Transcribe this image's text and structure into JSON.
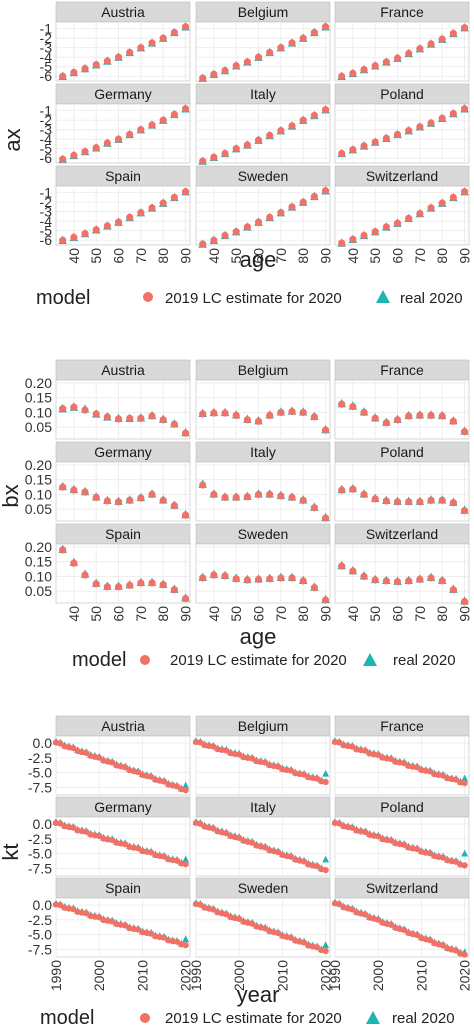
{
  "countries": [
    "Austria",
    "Belgium",
    "France",
    "Germany",
    "Italy",
    "Poland",
    "Spain",
    "Sweden",
    "Switzerland"
  ],
  "legend": {
    "title": "model",
    "items": [
      "2019 LC estimate for 2020",
      "real 2020"
    ]
  },
  "colors": {
    "estimate": "#f07167",
    "real": "#1cb5b0",
    "strip": "#d9d9d9",
    "grid": "#ebebeb"
  },
  "chart_data": [
    {
      "type": "scatter",
      "facet_by": "country",
      "ylabel": "ax",
      "xlabel": "age",
      "xlim": [
        32,
        92
      ],
      "ylim": [
        -6.5,
        -0.3
      ],
      "x_ticks": [
        40,
        50,
        60,
        70,
        80,
        90
      ],
      "y_ticks": [
        -1,
        -2,
        -3,
        -4,
        -5,
        -6
      ],
      "x": [
        35,
        40,
        45,
        50,
        55,
        60,
        65,
        70,
        75,
        80,
        85,
        90
      ],
      "panels": [
        {
          "country": "Austria",
          "estimate": [
            -6.0,
            -5.6,
            -5.2,
            -4.8,
            -4.4,
            -4.0,
            -3.5,
            -3.0,
            -2.5,
            -2.0,
            -1.4,
            -0.8
          ],
          "real": [
            -6.0,
            -5.6,
            -5.2,
            -4.8,
            -4.4,
            -4.0,
            -3.5,
            -3.0,
            -2.5,
            -2.0,
            -1.4,
            -0.8
          ]
        },
        {
          "country": "Belgium",
          "estimate": [
            -6.2,
            -5.8,
            -5.4,
            -4.9,
            -4.5,
            -4.0,
            -3.5,
            -3.0,
            -2.5,
            -2.0,
            -1.4,
            -0.8
          ],
          "real": [
            -6.2,
            -5.8,
            -5.4,
            -4.9,
            -4.5,
            -4.0,
            -3.5,
            -3.0,
            -2.5,
            -2.0,
            -1.4,
            -0.8
          ]
        },
        {
          "country": "France",
          "estimate": [
            -6.0,
            -5.7,
            -5.3,
            -4.9,
            -4.5,
            -4.1,
            -3.6,
            -3.1,
            -2.6,
            -2.1,
            -1.5,
            -0.9
          ],
          "real": [
            -6.0,
            -5.7,
            -5.3,
            -4.9,
            -4.5,
            -4.1,
            -3.6,
            -3.1,
            -2.6,
            -2.1,
            -1.5,
            -0.9
          ]
        },
        {
          "country": "Germany",
          "estimate": [
            -6.1,
            -5.7,
            -5.3,
            -4.9,
            -4.4,
            -4.0,
            -3.5,
            -3.0,
            -2.5,
            -2.0,
            -1.4,
            -0.8
          ],
          "real": [
            -6.1,
            -5.7,
            -5.3,
            -4.9,
            -4.4,
            -4.0,
            -3.5,
            -3.0,
            -2.5,
            -2.0,
            -1.4,
            -0.8
          ]
        },
        {
          "country": "Italy",
          "estimate": [
            -6.3,
            -5.9,
            -5.5,
            -5.0,
            -4.6,
            -4.1,
            -3.6,
            -3.1,
            -2.6,
            -2.0,
            -1.5,
            -0.9
          ],
          "real": [
            -6.3,
            -5.9,
            -5.5,
            -5.0,
            -4.6,
            -4.1,
            -3.6,
            -3.1,
            -2.6,
            -2.0,
            -1.5,
            -0.9
          ]
        },
        {
          "country": "Poland",
          "estimate": [
            -5.5,
            -5.1,
            -4.7,
            -4.3,
            -3.9,
            -3.5,
            -3.1,
            -2.7,
            -2.3,
            -1.8,
            -1.3,
            -0.8
          ],
          "real": [
            -5.5,
            -5.1,
            -4.7,
            -4.3,
            -3.9,
            -3.5,
            -3.1,
            -2.7,
            -2.3,
            -1.8,
            -1.3,
            -0.8
          ]
        },
        {
          "country": "Spain",
          "estimate": [
            -6.0,
            -5.7,
            -5.3,
            -4.9,
            -4.5,
            -4.1,
            -3.6,
            -3.1,
            -2.6,
            -2.1,
            -1.5,
            -0.9
          ],
          "real": [
            -6.0,
            -5.7,
            -5.3,
            -4.9,
            -4.5,
            -4.1,
            -3.6,
            -3.1,
            -2.6,
            -2.1,
            -1.5,
            -0.9
          ]
        },
        {
          "country": "Sweden",
          "estimate": [
            -6.4,
            -6.0,
            -5.5,
            -5.1,
            -4.6,
            -4.1,
            -3.6,
            -3.1,
            -2.5,
            -2.0,
            -1.4,
            -0.8
          ],
          "real": [
            -6.4,
            -6.0,
            -5.5,
            -5.1,
            -4.6,
            -4.1,
            -3.6,
            -3.1,
            -2.5,
            -2.0,
            -1.4,
            -0.8
          ]
        },
        {
          "country": "Switzerland",
          "estimate": [
            -6.3,
            -5.9,
            -5.5,
            -5.1,
            -4.6,
            -4.2,
            -3.7,
            -3.2,
            -2.6,
            -2.1,
            -1.5,
            -0.9
          ],
          "real": [
            -6.3,
            -5.9,
            -5.5,
            -5.1,
            -4.6,
            -4.2,
            -3.7,
            -3.2,
            -2.6,
            -2.1,
            -1.5,
            -0.9
          ]
        }
      ]
    },
    {
      "type": "scatter",
      "facet_by": "country",
      "ylabel": "bx",
      "xlabel": "age",
      "xlim": [
        32,
        92
      ],
      "ylim": [
        0.01,
        0.21
      ],
      "x_ticks": [
        40,
        50,
        60,
        70,
        80,
        90
      ],
      "y_ticks": [
        0.05,
        0.1,
        0.15,
        0.2
      ],
      "y_tick_labels": [
        "0.05",
        "0.10",
        "0.15",
        "0.20"
      ],
      "x": [
        35,
        40,
        45,
        50,
        55,
        60,
        65,
        70,
        75,
        80,
        85,
        90
      ],
      "panels": [
        {
          "country": "Austria",
          "estimate": [
            0.113,
            0.118,
            0.108,
            0.095,
            0.085,
            0.078,
            0.08,
            0.08,
            0.088,
            0.075,
            0.06,
            0.03
          ],
          "real": [
            0.113,
            0.118,
            0.112,
            0.095,
            0.085,
            0.08,
            0.08,
            0.082,
            0.09,
            0.077,
            0.062,
            0.032
          ]
        },
        {
          "country": "Belgium",
          "estimate": [
            0.095,
            0.098,
            0.098,
            0.09,
            0.075,
            0.07,
            0.09,
            0.1,
            0.103,
            0.1,
            0.085,
            0.04
          ],
          "real": [
            0.097,
            0.1,
            0.1,
            0.092,
            0.077,
            0.072,
            0.092,
            0.102,
            0.105,
            0.102,
            0.087,
            0.042
          ]
        },
        {
          "country": "France",
          "estimate": [
            0.128,
            0.12,
            0.1,
            0.08,
            0.065,
            0.075,
            0.088,
            0.09,
            0.09,
            0.088,
            0.07,
            0.035
          ],
          "real": [
            0.13,
            0.122,
            0.102,
            0.082,
            0.067,
            0.077,
            0.09,
            0.092,
            0.092,
            0.09,
            0.072,
            0.037
          ]
        },
        {
          "country": "Germany",
          "estimate": [
            0.125,
            0.115,
            0.108,
            0.09,
            0.078,
            0.075,
            0.08,
            0.088,
            0.1,
            0.08,
            0.062,
            0.03
          ],
          "real": [
            0.127,
            0.117,
            0.11,
            0.092,
            0.08,
            0.077,
            0.082,
            0.09,
            0.102,
            0.082,
            0.064,
            0.032
          ]
        },
        {
          "country": "Italy",
          "estimate": [
            0.132,
            0.1,
            0.09,
            0.09,
            0.092,
            0.1,
            0.1,
            0.095,
            0.09,
            0.08,
            0.055,
            0.02
          ],
          "real": [
            0.135,
            0.102,
            0.092,
            0.092,
            0.094,
            0.102,
            0.102,
            0.097,
            0.092,
            0.082,
            0.057,
            0.022
          ]
        },
        {
          "country": "Poland",
          "estimate": [
            0.115,
            0.118,
            0.1,
            0.085,
            0.078,
            0.075,
            0.075,
            0.075,
            0.08,
            0.08,
            0.072,
            0.045
          ],
          "real": [
            0.117,
            0.12,
            0.102,
            0.087,
            0.08,
            0.077,
            0.077,
            0.077,
            0.082,
            0.082,
            0.074,
            0.047
          ]
        },
        {
          "country": "Spain",
          "estimate": [
            0.19,
            0.145,
            0.105,
            0.075,
            0.065,
            0.065,
            0.07,
            0.078,
            0.078,
            0.072,
            0.055,
            0.025
          ],
          "real": [
            0.192,
            0.148,
            0.108,
            0.077,
            0.067,
            0.067,
            0.072,
            0.08,
            0.08,
            0.074,
            0.057,
            0.027
          ]
        },
        {
          "country": "Sweden",
          "estimate": [
            0.095,
            0.105,
            0.102,
            0.092,
            0.088,
            0.09,
            0.092,
            0.095,
            0.095,
            0.085,
            0.062,
            0.02
          ],
          "real": [
            0.097,
            0.107,
            0.104,
            0.094,
            0.09,
            0.092,
            0.094,
            0.097,
            0.097,
            0.087,
            0.064,
            0.022
          ]
        },
        {
          "country": "Switzerland",
          "estimate": [
            0.135,
            0.118,
            0.1,
            0.088,
            0.085,
            0.082,
            0.085,
            0.09,
            0.095,
            0.085,
            0.055,
            0.015
          ],
          "real": [
            0.137,
            0.12,
            0.102,
            0.09,
            0.087,
            0.084,
            0.087,
            0.092,
            0.097,
            0.087,
            0.057,
            0.017
          ]
        }
      ]
    },
    {
      "type": "scatter",
      "facet_by": "country",
      "ylabel": "kt",
      "xlabel": "year",
      "xlim": [
        1990,
        2021
      ],
      "ylim": [
        -8.8,
        1.2
      ],
      "x_ticks": [
        1990,
        2000,
        2010,
        2020
      ],
      "y_ticks": [
        0.0,
        -2.5,
        -5.0,
        -7.5
      ],
      "y_tick_labels": [
        "0.0",
        "-2.5",
        "-5.0",
        "-7.5"
      ],
      "x_start": 1990,
      "x_end": 2020,
      "panels": [
        {
          "country": "Austria",
          "start": 0.1,
          "end_estimate": -8.0,
          "real_2020": -7.2
        },
        {
          "country": "Belgium",
          "start": 0.2,
          "end_estimate": -6.6,
          "real_2020": -5.2
        },
        {
          "country": "France",
          "start": 0.2,
          "end_estimate": -6.8,
          "real_2020": -6.0
        },
        {
          "country": "Germany",
          "start": 0.2,
          "end_estimate": -6.8,
          "real_2020": -6.0
        },
        {
          "country": "Italy",
          "start": 0.2,
          "end_estimate": -7.8,
          "real_2020": -6.0
        },
        {
          "country": "Poland",
          "start": 0.2,
          "end_estimate": -7.0,
          "real_2020": -5.0
        },
        {
          "country": "Spain",
          "start": 0.1,
          "end_estimate": -6.8,
          "real_2020": -5.8
        },
        {
          "country": "Sweden",
          "start": 0.2,
          "end_estimate": -7.8,
          "real_2020": -6.8
        },
        {
          "country": "Switzerland",
          "start": 0.3,
          "end_estimate": -8.4,
          "real_2020": -8.0
        }
      ]
    }
  ]
}
